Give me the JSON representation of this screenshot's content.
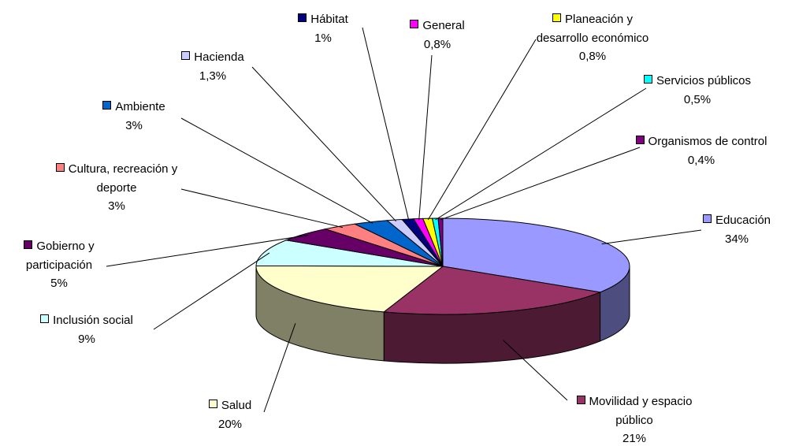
{
  "chart_data": {
    "type": "pie",
    "categories": [
      "Educación",
      "Movilidad y espacio público",
      "Salud",
      "Inclusión social",
      "Gobierno y participación",
      "Cultura, recreación y deporte",
      "Ambiente",
      "Hacienda",
      "Hábitat",
      "General",
      "Planeación y desarrollo económico",
      "Servicios públicos",
      "Organismos de control"
    ],
    "values": [
      34,
      21,
      20,
      9,
      5,
      3,
      3,
      1.3,
      1,
      0.8,
      0.8,
      0.5,
      0.4
    ],
    "value_labels": [
      "34%",
      "21%",
      "20%",
      "9%",
      "5%",
      "3%",
      "3%",
      "1,3%",
      "1%",
      "0,8%",
      "0,8%",
      "0,5%",
      "0,4%"
    ],
    "colors": [
      "#9999ff",
      "#993366",
      "#ffffcc",
      "#ccffff",
      "#660066",
      "#ff8080",
      "#0066cc",
      "#ccccff",
      "#000080",
      "#ff00ff",
      "#ffff00",
      "#00ffff",
      "#800080"
    ]
  }
}
